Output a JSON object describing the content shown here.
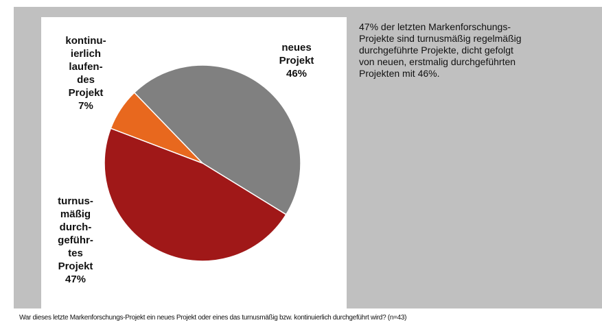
{
  "chart_data": {
    "type": "pie",
    "categories": [
      "neues\nProjekt",
      "turnus-\nmäßig\ndurch-\ngeführ-\ntes\nProjekt",
      "kontinu-\nierlich\nlaufen-\ndes\nProjekt"
    ],
    "values": [
      46,
      47,
      7
    ],
    "value_labels": [
      "46%",
      "47%",
      "7%"
    ],
    "colors": [
      "#808080",
      "#a01818",
      "#e8681e"
    ],
    "annotation": "47% der letzten Markenforschungs-\nProjekte sind turnusmäßig regelmäßig\ndurchgeführte Projekte, dicht gefolgt\nvon neuen, erstmalig durchgeführten\nProjekten mit 46%.",
    "footnote": "War dieses letzte Markenforschungs-Projekt ein neues Projekt oder eines das turnusmäßig bzw. kontinuierlich durchgeführt wird? (n=43)"
  }
}
